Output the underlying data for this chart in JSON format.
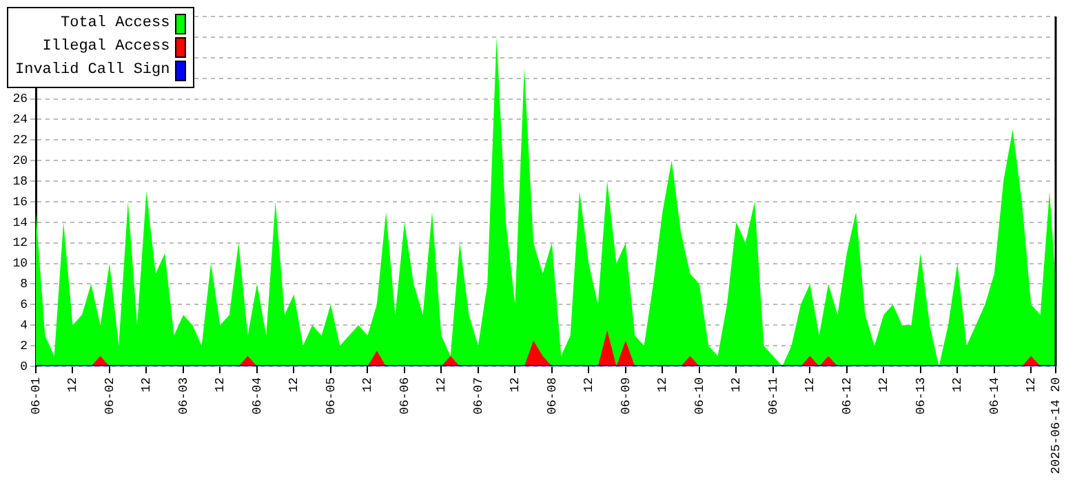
{
  "chart_data": {
    "type": "area",
    "x": [
      "2025-06-01T00:00",
      "2025-06-01T03:00",
      "2025-06-01T06:00",
      "2025-06-01T09:00",
      "2025-06-01T12:00",
      "2025-06-01T15:00",
      "2025-06-01T18:00",
      "2025-06-01T21:00",
      "2025-06-02T00:00",
      "2025-06-02T03:00",
      "2025-06-02T06:00",
      "2025-06-02T09:00",
      "2025-06-02T12:00",
      "2025-06-02T15:00",
      "2025-06-02T18:00",
      "2025-06-02T21:00",
      "2025-06-03T00:00",
      "2025-06-03T03:00",
      "2025-06-03T06:00",
      "2025-06-03T09:00",
      "2025-06-03T12:00",
      "2025-06-03T15:00",
      "2025-06-03T18:00",
      "2025-06-03T21:00",
      "2025-06-04T00:00",
      "2025-06-04T03:00",
      "2025-06-04T06:00",
      "2025-06-04T09:00",
      "2025-06-04T12:00",
      "2025-06-04T15:00",
      "2025-06-04T18:00",
      "2025-06-04T21:00",
      "2025-06-05T00:00",
      "2025-06-05T03:00",
      "2025-06-05T06:00",
      "2025-06-05T09:00",
      "2025-06-05T12:00",
      "2025-06-05T15:00",
      "2025-06-05T18:00",
      "2025-06-05T21:00",
      "2025-06-06T00:00",
      "2025-06-06T03:00",
      "2025-06-06T06:00",
      "2025-06-06T09:00",
      "2025-06-06T12:00",
      "2025-06-06T15:00",
      "2025-06-06T18:00",
      "2025-06-06T21:00",
      "2025-06-07T00:00",
      "2025-06-07T03:00",
      "2025-06-07T06:00",
      "2025-06-07T09:00",
      "2025-06-07T12:00",
      "2025-06-07T15:00",
      "2025-06-07T18:00",
      "2025-06-07T21:00",
      "2025-06-08T00:00",
      "2025-06-08T03:00",
      "2025-06-08T06:00",
      "2025-06-08T09:00",
      "2025-06-08T12:00",
      "2025-06-08T15:00",
      "2025-06-08T18:00",
      "2025-06-08T21:00",
      "2025-06-09T00:00",
      "2025-06-09T03:00",
      "2025-06-09T06:00",
      "2025-06-09T09:00",
      "2025-06-09T12:00",
      "2025-06-09T15:00",
      "2025-06-09T18:00",
      "2025-06-09T21:00",
      "2025-06-10T00:00",
      "2025-06-10T03:00",
      "2025-06-10T06:00",
      "2025-06-10T09:00",
      "2025-06-10T12:00",
      "2025-06-10T15:00",
      "2025-06-10T18:00",
      "2025-06-10T21:00",
      "2025-06-11T00:00",
      "2025-06-11T03:00",
      "2025-06-11T06:00",
      "2025-06-11T09:00",
      "2025-06-11T12:00",
      "2025-06-11T15:00",
      "2025-06-11T18:00",
      "2025-06-11T21:00",
      "2025-06-12T00:00",
      "2025-06-12T03:00",
      "2025-06-12T06:00",
      "2025-06-12T09:00",
      "2025-06-12T12:00",
      "2025-06-12T15:00",
      "2025-06-12T18:00",
      "2025-06-12T21:00",
      "2025-06-13T00:00",
      "2025-06-13T03:00",
      "2025-06-13T06:00",
      "2025-06-13T09:00",
      "2025-06-13T12:00",
      "2025-06-13T15:00",
      "2025-06-13T18:00",
      "2025-06-13T21:00",
      "2025-06-14T00:00",
      "2025-06-14T03:00",
      "2025-06-14T06:00",
      "2025-06-14T09:00",
      "2025-06-14T12:00",
      "2025-06-14T15:00",
      "2025-06-14T18:00",
      "2025-06-14T20:00"
    ],
    "series": [
      {
        "name": "Total Access",
        "color": "#00ff00",
        "values": [
          15,
          3,
          1,
          14,
          4,
          5,
          8,
          4,
          10,
          2,
          16,
          4,
          17,
          9,
          11,
          3,
          5,
          4,
          2,
          10,
          4,
          5,
          12,
          3,
          8,
          3,
          16,
          5,
          7,
          2,
          4,
          3,
          6,
          2,
          3,
          4,
          3,
          6,
          15,
          5,
          14,
          8,
          5,
          15,
          3,
          1,
          12,
          5,
          2,
          8,
          32,
          14,
          6,
          29,
          12,
          9,
          12,
          1,
          3,
          17,
          10,
          6,
          18,
          10,
          12,
          3,
          2,
          8,
          15,
          20,
          13,
          9,
          8,
          2,
          1,
          6,
          14,
          12,
          16,
          2,
          1,
          0,
          2,
          6,
          8,
          3,
          8,
          5,
          11,
          15,
          5,
          2,
          5,
          6,
          4,
          4,
          11,
          4,
          0,
          4,
          10,
          2,
          4,
          6,
          9,
          18,
          23,
          16,
          6,
          5,
          17,
          8
        ]
      },
      {
        "name": "Illegal Access",
        "color": "#ff0000",
        "values": [
          0,
          0,
          0,
          0,
          0,
          0,
          0,
          1,
          0,
          0,
          0,
          0,
          0,
          0,
          0,
          0,
          0,
          0,
          0,
          0,
          0,
          0,
          0,
          1,
          0,
          0,
          0,
          0,
          0,
          0,
          0,
          0,
          0,
          0,
          0,
          0,
          0,
          1.5,
          0,
          0,
          0,
          0,
          0,
          0,
          0,
          1,
          0,
          0,
          0,
          0,
          0,
          0,
          0,
          0,
          2.5,
          1,
          0,
          0,
          0,
          0,
          0,
          0,
          3.5,
          0,
          2.5,
          0,
          0,
          0,
          0,
          0,
          0,
          1,
          0,
          0,
          0,
          0,
          0,
          0,
          0,
          0,
          0,
          0,
          0,
          0,
          1,
          0,
          1,
          0,
          0,
          0,
          0,
          0,
          0,
          0,
          0,
          0,
          0,
          0,
          0,
          0,
          0,
          0,
          0,
          0,
          0,
          0,
          0,
          0,
          1,
          0,
          0,
          0
        ]
      },
      {
        "name": "Invalid Call Sign",
        "type": "line",
        "color": "#0000ff",
        "values": [
          0,
          0,
          0,
          0,
          0,
          0,
          0,
          0,
          0,
          0,
          0,
          0,
          0,
          0,
          0,
          0,
          0,
          0,
          0,
          0,
          0,
          0,
          0,
          0,
          0,
          0,
          0,
          0,
          0,
          0,
          0,
          0,
          0,
          0,
          0,
          0,
          0,
          0,
          0,
          0,
          0,
          0,
          0,
          0,
          0,
          0,
          0,
          0,
          0,
          0,
          0,
          0,
          0,
          0,
          0,
          0,
          0,
          0,
          0,
          0,
          0,
          0,
          0,
          0,
          0,
          0,
          0,
          0,
          0,
          0,
          0,
          0,
          0,
          0,
          0,
          0,
          0,
          0,
          0,
          0,
          0,
          0,
          0,
          0,
          0,
          0,
          0,
          0,
          0,
          0,
          0,
          0,
          0,
          0,
          0,
          0,
          0,
          0,
          0,
          0,
          0,
          0,
          0,
          0,
          0,
          0,
          0,
          0,
          0,
          0,
          0,
          0
        ]
      }
    ],
    "xlim": [
      "2025-06-01T00:00",
      "2025-06-14T20:00"
    ],
    "xticks": [
      {
        "value": "2025-06-01T00:00",
        "label": "06-01"
      },
      {
        "value": "2025-06-01T12:00",
        "label": "12"
      },
      {
        "value": "2025-06-02T00:00",
        "label": "06-02"
      },
      {
        "value": "2025-06-02T12:00",
        "label": "12"
      },
      {
        "value": "2025-06-03T00:00",
        "label": "06-03"
      },
      {
        "value": "2025-06-03T12:00",
        "label": "12"
      },
      {
        "value": "2025-06-04T00:00",
        "label": "06-04"
      },
      {
        "value": "2025-06-04T12:00",
        "label": "12"
      },
      {
        "value": "2025-06-05T00:00",
        "label": "06-05"
      },
      {
        "value": "2025-06-05T12:00",
        "label": "12"
      },
      {
        "value": "2025-06-06T00:00",
        "label": "06-06"
      },
      {
        "value": "2025-06-06T12:00",
        "label": "12"
      },
      {
        "value": "2025-06-07T00:00",
        "label": "06-07"
      },
      {
        "value": "2025-06-07T12:00",
        "label": "12"
      },
      {
        "value": "2025-06-08T00:00",
        "label": "06-08"
      },
      {
        "value": "2025-06-08T12:00",
        "label": "12"
      },
      {
        "value": "2025-06-09T00:00",
        "label": "06-09"
      },
      {
        "value": "2025-06-09T12:00",
        "label": "12"
      },
      {
        "value": "2025-06-10T00:00",
        "label": "06-10"
      },
      {
        "value": "2025-06-10T12:00",
        "label": "12"
      },
      {
        "value": "2025-06-11T00:00",
        "label": "06-11"
      },
      {
        "value": "2025-06-11T12:00",
        "label": "12"
      },
      {
        "value": "2025-06-12T00:00",
        "label": "06-12"
      },
      {
        "value": "2025-06-12T12:00",
        "label": "12"
      },
      {
        "value": "2025-06-13T00:00",
        "label": "06-13"
      },
      {
        "value": "2025-06-13T12:00",
        "label": "12"
      },
      {
        "value": "2025-06-14T00:00",
        "label": "06-14"
      },
      {
        "value": "2025-06-14T12:00",
        "label": "12"
      },
      {
        "value": "2025-06-14T20:00",
        "label": "2025-06-14 20"
      }
    ],
    "ylim": [
      0,
      34
    ],
    "yticks": [
      0,
      2,
      4,
      6,
      8,
      10,
      12,
      14,
      16,
      18,
      20,
      22,
      24,
      26,
      {
        "value": 28,
        "label": null
      },
      {
        "value": 30,
        "label": null
      },
      {
        "value": 32,
        "label": null
      },
      {
        "value": 34,
        "label": null
      }
    ],
    "grid": "y",
    "legend": "top left",
    "marker": "none"
  }
}
